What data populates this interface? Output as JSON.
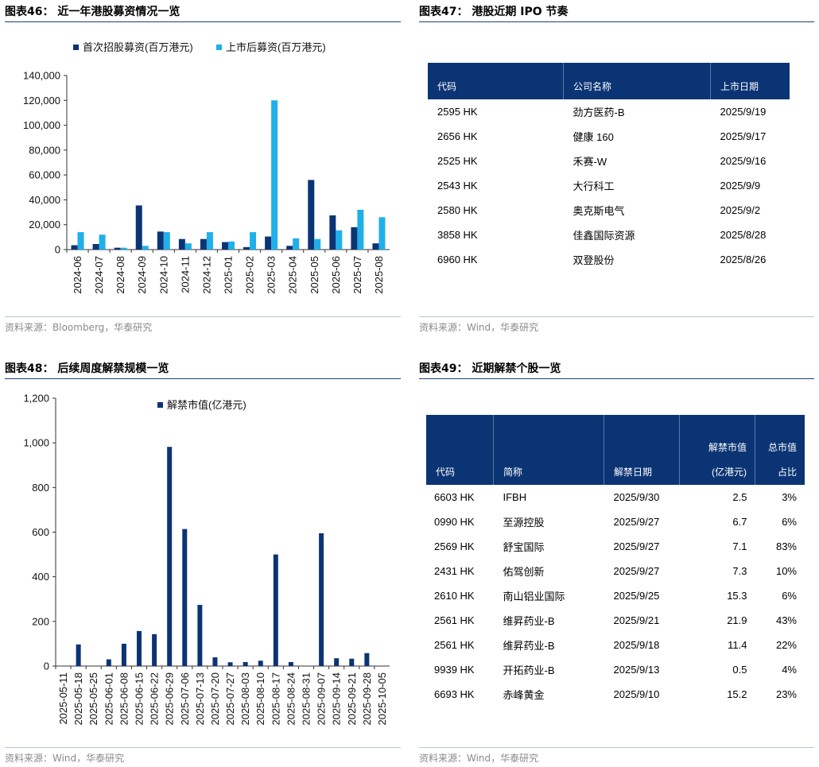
{
  "colors": {
    "navy": "#0b3474",
    "sky": "#1fb0ea",
    "rule": "#1a3f7a"
  },
  "fig46": {
    "title": "图表46：  近一年港股募资情况一览",
    "source": "资料来源：Bloomberg，华泰研究"
  },
  "fig47": {
    "title": "图表47：  港股近期 IPO 节奏",
    "source": "资料来源：Wind，华泰研究",
    "headers": [
      "代码",
      "公司名称",
      "上市日期"
    ],
    "rows": [
      [
        "2595 HK",
        "劲方医药-B",
        "2025/9/19"
      ],
      [
        "2656 HK",
        "健康 160",
        "2025/9/17"
      ],
      [
        "2525 HK",
        "禾赛-W",
        "2025/9/16"
      ],
      [
        "2543 HK",
        "大行科工",
        "2025/9/9"
      ],
      [
        "2580 HK",
        "奥克斯电气",
        "2025/9/2"
      ],
      [
        "3858 HK",
        "佳鑫国际资源",
        "2025/8/28"
      ],
      [
        "6960 HK",
        "双登股份",
        "2025/8/26"
      ]
    ]
  },
  "fig48": {
    "title": "图表48：  后续周度解禁规模一览",
    "source": "资料来源：Wind，华泰研究"
  },
  "fig49": {
    "title": "图表49：  近期解禁个股一览",
    "source": "资料来源：Wind，华泰研究",
    "headers": [
      "代码",
      "简称",
      "解禁日期",
      "解禁市值",
      "(亿港元)",
      "总市值",
      "占比"
    ],
    "rows": [
      [
        "6603 HK",
        "IFBH",
        "2025/9/30",
        "2.5",
        "3%"
      ],
      [
        "0990 HK",
        "至源控股",
        "2025/9/27",
        "6.7",
        "6%"
      ],
      [
        "2569 HK",
        "舒宝国际",
        "2025/9/27",
        "7.1",
        "83%"
      ],
      [
        "2431 HK",
        "佑驾创新",
        "2025/9/27",
        "7.3",
        "10%"
      ],
      [
        "2610 HK",
        "南山铝业国际",
        "2025/9/25",
        "15.3",
        "6%"
      ],
      [
        "2561 HK",
        "维昇药业-B",
        "2025/9/21",
        "21.9",
        "43%"
      ],
      [
        "2561 HK",
        "维昇药业-B",
        "2025/9/18",
        "11.4",
        "22%"
      ],
      [
        "9939 HK",
        "开拓药业-B",
        "2025/9/13",
        "0.5",
        "4%"
      ],
      [
        "6693 HK",
        "赤峰黄金",
        "2025/9/10",
        "15.2",
        "23%"
      ]
    ]
  },
  "chart_data": [
    {
      "type": "bar",
      "categories": [
        "2024-06",
        "2024-07",
        "2024-08",
        "2024-09",
        "2024-10",
        "2024-11",
        "2024-12",
        "2025-01",
        "2025-02",
        "2025-03",
        "2025-04",
        "2025-05",
        "2025-06",
        "2025-07",
        "2025-08"
      ],
      "series": [
        {
          "name": "首次招股募资(百万港元)",
          "values": [
            3500,
            4500,
            1500,
            35500,
            14500,
            8500,
            8500,
            6000,
            2000,
            10500,
            3000,
            56000,
            27500,
            18000,
            5000
          ]
        },
        {
          "name": "上市后募资(百万港元)",
          "values": [
            14000,
            12000,
            1500,
            3000,
            14000,
            5000,
            14000,
            6500,
            14000,
            120000,
            9000,
            8500,
            15500,
            32000,
            26000
          ]
        }
      ],
      "yticks": [
        "0",
        "20,000",
        "40,000",
        "60,000",
        "80,000",
        "100,000",
        "120,000",
        "140,000"
      ],
      "ylim": [
        0,
        140000
      ],
      "legend": "top"
    },
    {
      "type": "bar",
      "categories": [
        "2025-05-11",
        "2025-05-18",
        "2025-05-25",
        "2025-06-01",
        "2025-06-08",
        "2025-06-15",
        "2025-06-22",
        "2025-06-29",
        "2025-07-06",
        "2025-07-13",
        "2025-07-20",
        "2025-07-27",
        "2025-08-03",
        "2025-08-10",
        "2025-08-17",
        "2025-08-24",
        "2025-08-31",
        "2025-09-07",
        "2025-09-14",
        "2025-09-21",
        "2025-09-28",
        "2025-10-05"
      ],
      "series": [
        {
          "name": "解禁市值(亿港元)",
          "values": [
            0,
            97,
            0,
            30,
            100,
            157,
            143,
            982,
            614,
            274,
            39,
            17,
            18,
            24,
            500,
            18,
            0,
            595,
            35,
            33,
            58,
            0
          ]
        }
      ],
      "yticks": [
        "0",
        "200",
        "400",
        "600",
        "800",
        "1,000",
        "1,200"
      ],
      "ylim": [
        0,
        1200
      ],
      "legend": "top"
    }
  ]
}
